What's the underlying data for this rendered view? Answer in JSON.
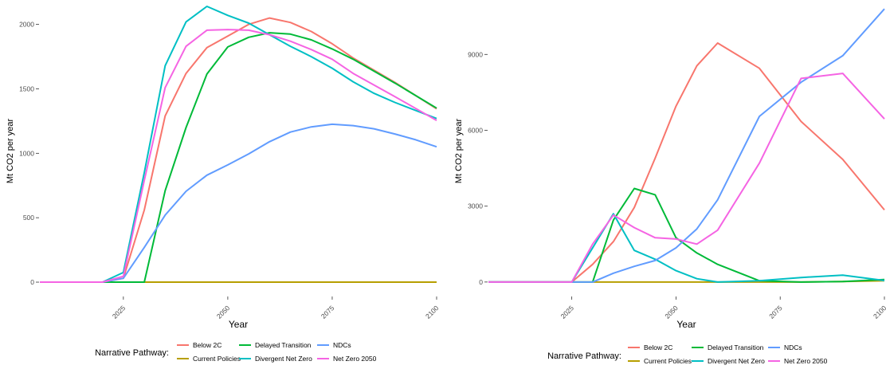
{
  "legend": {
    "title": "Narrative Pathway:"
  },
  "colors": {
    "Below 2C": "#F8766D",
    "Current Policies": "#B79F00",
    "Delayed Transition": "#00BA38",
    "Divergent Net Zero": "#00BFC4",
    "NDCs": "#619CFF",
    "Net Zero 2050": "#F564E3"
  },
  "chart_data": [
    {
      "type": "line",
      "xlabel": "Year",
      "ylabel": "Mt CO2 per year",
      "xlim": [
        2005,
        2100
      ],
      "ylim": [
        -105,
        2140
      ],
      "xticks": [
        2025,
        2050,
        2075,
        2100
      ],
      "yticks": [
        0,
        500,
        1000,
        1500,
        2000
      ],
      "grid": false,
      "legend_position": "bottom",
      "series": [
        {
          "name": "Below 2C",
          "x": [
            2005,
            2020,
            2025,
            2030,
            2035,
            2040,
            2045,
            2050,
            2055,
            2060,
            2065,
            2070,
            2075,
            2080,
            2090,
            2100
          ],
          "y": [
            0,
            0,
            30,
            560,
            1290,
            1620,
            1820,
            1910,
            2000,
            2050,
            2015,
            1945,
            1850,
            1740,
            1550,
            1345
          ]
        },
        {
          "name": "Current Policies",
          "x": [
            2005,
            2020,
            2025,
            2030,
            2040,
            2050,
            2060,
            2070,
            2080,
            2090,
            2100
          ],
          "y": [
            0,
            0,
            0,
            0,
            0,
            0,
            0,
            0,
            0,
            0,
            0
          ]
        },
        {
          "name": "Delayed Transition",
          "x": [
            2005,
            2020,
            2025,
            2030,
            2035,
            2040,
            2045,
            2050,
            2055,
            2060,
            2065,
            2070,
            2075,
            2080,
            2090,
            2100
          ],
          "y": [
            0,
            0,
            0,
            0,
            710,
            1200,
            1615,
            1825,
            1900,
            1935,
            1925,
            1880,
            1810,
            1730,
            1545,
            1350
          ]
        },
        {
          "name": "Divergent Net Zero",
          "x": [
            2005,
            2020,
            2025,
            2030,
            2035,
            2040,
            2045,
            2050,
            2055,
            2060,
            2065,
            2070,
            2075,
            2080,
            2085,
            2090,
            2100
          ],
          "y": [
            0,
            0,
            75,
            850,
            1680,
            2020,
            2140,
            2070,
            2010,
            1920,
            1830,
            1750,
            1660,
            1555,
            1465,
            1395,
            1270
          ]
        },
        {
          "name": "NDCs",
          "x": [
            2005,
            2020,
            2025,
            2030,
            2035,
            2040,
            2045,
            2050,
            2055,
            2060,
            2065,
            2070,
            2075,
            2080,
            2085,
            2090,
            2095,
            2100
          ],
          "y": [
            0,
            0,
            30,
            270,
            520,
            705,
            830,
            910,
            995,
            1090,
            1165,
            1205,
            1225,
            1215,
            1190,
            1150,
            1105,
            1050
          ]
        },
        {
          "name": "Net Zero 2050",
          "x": [
            2005,
            2020,
            2025,
            2030,
            2035,
            2040,
            2045,
            2050,
            2055,
            2060,
            2065,
            2070,
            2075,
            2080,
            2090,
            2100
          ],
          "y": [
            0,
            0,
            45,
            790,
            1510,
            1830,
            1955,
            1960,
            1955,
            1920,
            1870,
            1805,
            1730,
            1620,
            1440,
            1255
          ]
        }
      ]
    },
    {
      "type": "line",
      "xlabel": "Year",
      "ylabel": "Mt CO2 per year",
      "xlim": [
        2005,
        2100
      ],
      "ylim": [
        -540,
        10900
      ],
      "xticks": [
        2025,
        2050,
        2075,
        2100
      ],
      "yticks": [
        0,
        3000,
        6000,
        9000
      ],
      "grid": false,
      "legend_position": "bottom",
      "series": [
        {
          "name": "Below 2C",
          "x": [
            2005,
            2020,
            2025,
            2030,
            2035,
            2040,
            2045,
            2050,
            2055,
            2060,
            2070,
            2080,
            2090,
            2100
          ],
          "y": [
            0,
            0,
            0,
            700,
            1600,
            2950,
            4900,
            6950,
            8550,
            9450,
            8450,
            6350,
            4850,
            2850
          ]
        },
        {
          "name": "Current Policies",
          "x": [
            2005,
            2020,
            2025,
            2030,
            2040,
            2050,
            2060,
            2070,
            2080,
            2090,
            2100
          ],
          "y": [
            0,
            0,
            0,
            0,
            0,
            0,
            0,
            0,
            0,
            20,
            50
          ]
        },
        {
          "name": "Delayed Transition",
          "x": [
            2005,
            2020,
            2025,
            2030,
            2035,
            2040,
            2045,
            2050,
            2055,
            2060,
            2070,
            2080,
            2090,
            2100
          ],
          "y": [
            0,
            0,
            0,
            0,
            2450,
            3700,
            3450,
            1750,
            1150,
            700,
            50,
            0,
            20,
            100
          ]
        },
        {
          "name": "Divergent Net Zero",
          "x": [
            2005,
            2020,
            2025,
            2030,
            2035,
            2040,
            2045,
            2050,
            2055,
            2060,
            2070,
            2080,
            2090,
            2100
          ],
          "y": [
            0,
            0,
            0,
            1350,
            2700,
            1250,
            900,
            450,
            130,
            0,
            50,
            180,
            270,
            60
          ]
        },
        {
          "name": "NDCs",
          "x": [
            2005,
            2020,
            2025,
            2030,
            2035,
            2040,
            2045,
            2050,
            2055,
            2060,
            2070,
            2080,
            2090,
            2100
          ],
          "y": [
            0,
            0,
            0,
            0,
            350,
            620,
            850,
            1350,
            2100,
            3250,
            6550,
            7900,
            8950,
            10800
          ]
        },
        {
          "name": "Net Zero 2050",
          "x": [
            2005,
            2020,
            2025,
            2030,
            2035,
            2040,
            2045,
            2050,
            2055,
            2060,
            2070,
            2080,
            2090,
            2100
          ],
          "y": [
            0,
            0,
            0,
            1500,
            2650,
            2150,
            1750,
            1700,
            1500,
            2050,
            4700,
            8050,
            8250,
            6450
          ]
        }
      ]
    }
  ]
}
